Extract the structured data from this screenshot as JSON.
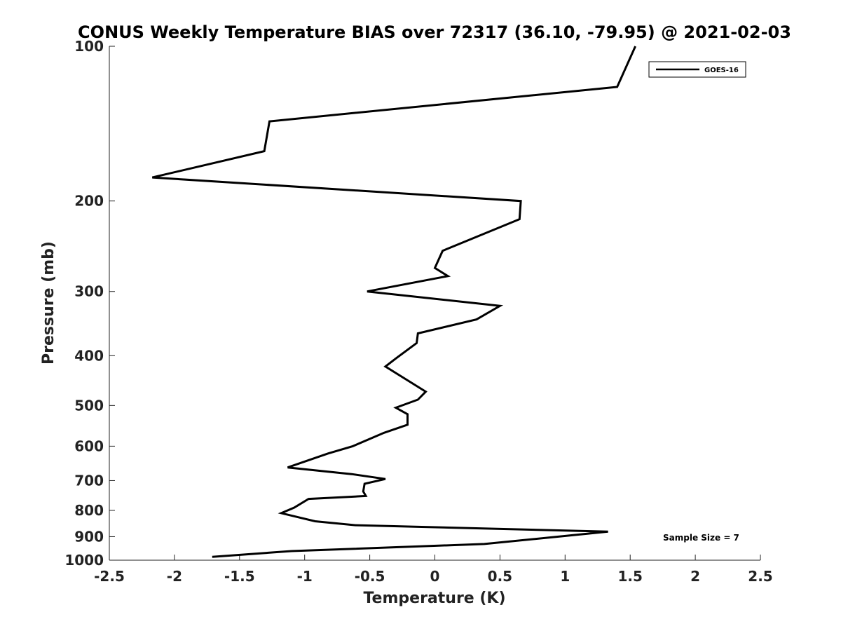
{
  "chart_data": {
    "type": "line",
    "title": "CONUS Weekly Temperature BIAS over 72317 (36.10, -79.95) @ 2021-02-03",
    "xlabel": "Temperature (K)",
    "ylabel": "Pressure (mb)",
    "xlim": [
      -2.5,
      2.5
    ],
    "ylim": [
      100,
      1000
    ],
    "y_scale": "log",
    "y_reversed": true,
    "x_ticks": [
      "-2.5",
      "-2",
      "-1.5",
      "-1",
      "-0.5",
      "0",
      "0.5",
      "1",
      "1.5",
      "2",
      "2.5"
    ],
    "y_ticks": [
      "100",
      "200",
      "300",
      "400",
      "500",
      "600",
      "700",
      "800",
      "900",
      "1000"
    ],
    "grid": false,
    "legend_position": "top-right",
    "series": [
      {
        "name": "GOES-16",
        "color": "#000000",
        "points": [
          [
            1.54,
            100
          ],
          [
            1.4,
            120
          ],
          [
            -1.27,
            140
          ],
          [
            -1.31,
            160
          ],
          [
            -2.17,
            180
          ],
          [
            0.66,
            200
          ],
          [
            0.65,
            217
          ],
          [
            0.06,
            250
          ],
          [
            0.0,
            270
          ],
          [
            0.1,
            280
          ],
          [
            -0.52,
            300
          ],
          [
            0.5,
            320
          ],
          [
            0.32,
            340
          ],
          [
            -0.13,
            362
          ],
          [
            -0.14,
            378
          ],
          [
            -0.3,
            405
          ],
          [
            -0.38,
            420
          ],
          [
            -0.07,
            470
          ],
          [
            -0.13,
            487
          ],
          [
            -0.3,
            505
          ],
          [
            -0.21,
            520
          ],
          [
            -0.21,
            545
          ],
          [
            -0.39,
            565
          ],
          [
            -0.63,
            600
          ],
          [
            -0.82,
            620
          ],
          [
            -1.13,
            660
          ],
          [
            -0.64,
            680
          ],
          [
            -0.38,
            695
          ],
          [
            -0.54,
            710
          ],
          [
            -0.55,
            735
          ],
          [
            -0.53,
            750
          ],
          [
            -0.97,
            760
          ],
          [
            -1.08,
            790
          ],
          [
            -1.18,
            810
          ],
          [
            -0.92,
            840
          ],
          [
            -0.61,
            855
          ],
          [
            1.33,
            880
          ],
          [
            0.38,
            930
          ],
          [
            -1.1,
            960
          ],
          [
            -1.71,
            985
          ]
        ]
      }
    ],
    "annotation": "Sample Size = 7"
  }
}
